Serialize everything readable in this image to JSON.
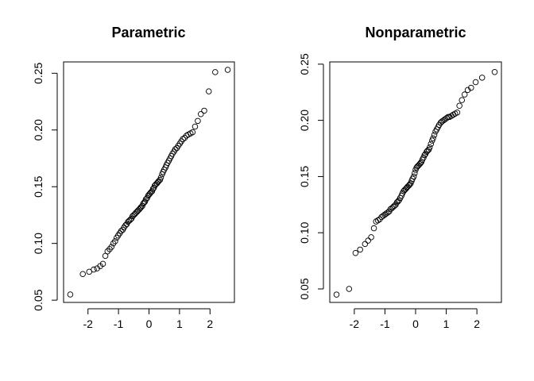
{
  "chart_data": [
    {
      "type": "scatter",
      "title": "Parametric",
      "xlabel": "",
      "ylabel": "",
      "xlim": [
        -2.8,
        2.8
      ],
      "ylim": [
        0.048,
        0.26
      ],
      "xticks": [
        -2,
        -1,
        0,
        1,
        2
      ],
      "xtick_labels": [
        "-2",
        "-1",
        "0",
        "1",
        "2"
      ],
      "yticks": [
        0.05,
        0.1,
        0.15,
        0.2,
        0.25
      ],
      "ytick_labels": [
        "0.05",
        "0.10",
        "0.15",
        "0.20",
        "0.25"
      ],
      "grid": false,
      "legend": "none",
      "marker": "open-circle",
      "points": [
        {
          "x": -2.58,
          "y": 0.055
        },
        {
          "x": -2.17,
          "y": 0.073
        },
        {
          "x": -1.96,
          "y": 0.075
        },
        {
          "x": -1.81,
          "y": 0.077
        },
        {
          "x": -1.7,
          "y": 0.078
        },
        {
          "x": -1.6,
          "y": 0.08
        },
        {
          "x": -1.51,
          "y": 0.082
        },
        {
          "x": -1.43,
          "y": 0.089
        },
        {
          "x": -1.36,
          "y": 0.093
        },
        {
          "x": -1.29,
          "y": 0.095
        },
        {
          "x": -1.23,
          "y": 0.097
        },
        {
          "x": -1.17,
          "y": 0.1
        },
        {
          "x": -1.11,
          "y": 0.102
        },
        {
          "x": -1.06,
          "y": 0.105
        },
        {
          "x": -1.01,
          "y": 0.107
        },
        {
          "x": -0.96,
          "y": 0.109
        },
        {
          "x": -0.91,
          "y": 0.111
        },
        {
          "x": -0.86,
          "y": 0.112
        },
        {
          "x": -0.82,
          "y": 0.114
        },
        {
          "x": -0.77,
          "y": 0.116
        },
        {
          "x": -0.73,
          "y": 0.117
        },
        {
          "x": -0.69,
          "y": 0.119
        },
        {
          "x": -0.65,
          "y": 0.12
        },
        {
          "x": -0.61,
          "y": 0.121
        },
        {
          "x": -0.57,
          "y": 0.122
        },
        {
          "x": -0.54,
          "y": 0.124
        },
        {
          "x": -0.5,
          "y": 0.125
        },
        {
          "x": -0.46,
          "y": 0.126
        },
        {
          "x": -0.43,
          "y": 0.127
        },
        {
          "x": -0.39,
          "y": 0.128
        },
        {
          "x": -0.36,
          "y": 0.129
        },
        {
          "x": -0.32,
          "y": 0.13
        },
        {
          "x": -0.29,
          "y": 0.131
        },
        {
          "x": -0.26,
          "y": 0.132
        },
        {
          "x": -0.22,
          "y": 0.133
        },
        {
          "x": -0.19,
          "y": 0.135
        },
        {
          "x": -0.16,
          "y": 0.136
        },
        {
          "x": -0.13,
          "y": 0.137
        },
        {
          "x": -0.1,
          "y": 0.139
        },
        {
          "x": -0.06,
          "y": 0.14
        },
        {
          "x": -0.03,
          "y": 0.142
        },
        {
          "x": 0.0,
          "y": 0.143
        },
        {
          "x": 0.03,
          "y": 0.144
        },
        {
          "x": 0.06,
          "y": 0.145
        },
        {
          "x": 0.1,
          "y": 0.146
        },
        {
          "x": 0.13,
          "y": 0.148
        },
        {
          "x": 0.16,
          "y": 0.149
        },
        {
          "x": 0.19,
          "y": 0.151
        },
        {
          "x": 0.22,
          "y": 0.152
        },
        {
          "x": 0.26,
          "y": 0.153
        },
        {
          "x": 0.29,
          "y": 0.154
        },
        {
          "x": 0.32,
          "y": 0.155
        },
        {
          "x": 0.36,
          "y": 0.156
        },
        {
          "x": 0.39,
          "y": 0.158
        },
        {
          "x": 0.43,
          "y": 0.161
        },
        {
          "x": 0.46,
          "y": 0.163
        },
        {
          "x": 0.5,
          "y": 0.165
        },
        {
          "x": 0.54,
          "y": 0.167
        },
        {
          "x": 0.57,
          "y": 0.169
        },
        {
          "x": 0.61,
          "y": 0.171
        },
        {
          "x": 0.65,
          "y": 0.173
        },
        {
          "x": 0.69,
          "y": 0.175
        },
        {
          "x": 0.73,
          "y": 0.177
        },
        {
          "x": 0.77,
          "y": 0.179
        },
        {
          "x": 0.82,
          "y": 0.181
        },
        {
          "x": 0.86,
          "y": 0.183
        },
        {
          "x": 0.91,
          "y": 0.184
        },
        {
          "x": 0.96,
          "y": 0.186
        },
        {
          "x": 1.01,
          "y": 0.188
        },
        {
          "x": 1.06,
          "y": 0.19
        },
        {
          "x": 1.11,
          "y": 0.192
        },
        {
          "x": 1.17,
          "y": 0.193
        },
        {
          "x": 1.23,
          "y": 0.195
        },
        {
          "x": 1.29,
          "y": 0.196
        },
        {
          "x": 1.36,
          "y": 0.197
        },
        {
          "x": 1.43,
          "y": 0.198
        },
        {
          "x": 1.51,
          "y": 0.203
        },
        {
          "x": 1.6,
          "y": 0.208
        },
        {
          "x": 1.7,
          "y": 0.214
        },
        {
          "x": 1.81,
          "y": 0.217
        },
        {
          "x": 1.96,
          "y": 0.234
        },
        {
          "x": 2.17,
          "y": 0.251
        },
        {
          "x": 2.58,
          "y": 0.253
        }
      ]
    },
    {
      "type": "scatter",
      "title": "Nonparametric",
      "xlabel": "",
      "ylabel": "",
      "xlim": [
        -2.8,
        2.8
      ],
      "ylim": [
        0.038,
        0.252
      ],
      "xticks": [
        -2,
        -1,
        0,
        1,
        2
      ],
      "xtick_labels": [
        "-2",
        "-1",
        "0",
        "1",
        "2"
      ],
      "yticks": [
        0.05,
        0.1,
        0.15,
        0.2,
        0.25
      ],
      "ytick_labels": [
        "0.05",
        "0.10",
        "0.15",
        "0.20",
        "0.25"
      ],
      "grid": false,
      "legend": "none",
      "marker": "open-circle",
      "points": [
        {
          "x": -2.58,
          "y": 0.045
        },
        {
          "x": -2.17,
          "y": 0.05
        },
        {
          "x": -1.96,
          "y": 0.082
        },
        {
          "x": -1.81,
          "y": 0.085
        },
        {
          "x": -1.65,
          "y": 0.09
        },
        {
          "x": -1.55,
          "y": 0.093
        },
        {
          "x": -1.45,
          "y": 0.096
        },
        {
          "x": -1.36,
          "y": 0.104
        },
        {
          "x": -1.29,
          "y": 0.11
        },
        {
          "x": -1.23,
          "y": 0.111
        },
        {
          "x": -1.17,
          "y": 0.112
        },
        {
          "x": -1.11,
          "y": 0.114
        },
        {
          "x": -1.06,
          "y": 0.115
        },
        {
          "x": -1.01,
          "y": 0.116
        },
        {
          "x": -0.96,
          "y": 0.117
        },
        {
          "x": -0.91,
          "y": 0.118
        },
        {
          "x": -0.86,
          "y": 0.119
        },
        {
          "x": -0.82,
          "y": 0.121
        },
        {
          "x": -0.77,
          "y": 0.122
        },
        {
          "x": -0.73,
          "y": 0.123
        },
        {
          "x": -0.69,
          "y": 0.124
        },
        {
          "x": -0.65,
          "y": 0.125
        },
        {
          "x": -0.61,
          "y": 0.127
        },
        {
          "x": -0.57,
          "y": 0.128
        },
        {
          "x": -0.54,
          "y": 0.129
        },
        {
          "x": -0.5,
          "y": 0.131
        },
        {
          "x": -0.46,
          "y": 0.133
        },
        {
          "x": -0.43,
          "y": 0.135
        },
        {
          "x": -0.39,
          "y": 0.137
        },
        {
          "x": -0.36,
          "y": 0.138
        },
        {
          "x": -0.32,
          "y": 0.139
        },
        {
          "x": -0.29,
          "y": 0.14
        },
        {
          "x": -0.26,
          "y": 0.141
        },
        {
          "x": -0.22,
          "y": 0.142
        },
        {
          "x": -0.19,
          "y": 0.143
        },
        {
          "x": -0.16,
          "y": 0.144
        },
        {
          "x": -0.13,
          "y": 0.146
        },
        {
          "x": -0.1,
          "y": 0.148
        },
        {
          "x": -0.06,
          "y": 0.15
        },
        {
          "x": -0.03,
          "y": 0.153
        },
        {
          "x": 0.0,
          "y": 0.156
        },
        {
          "x": 0.03,
          "y": 0.158
        },
        {
          "x": 0.06,
          "y": 0.159
        },
        {
          "x": 0.1,
          "y": 0.16
        },
        {
          "x": 0.13,
          "y": 0.161
        },
        {
          "x": 0.16,
          "y": 0.162
        },
        {
          "x": 0.19,
          "y": 0.163
        },
        {
          "x": 0.22,
          "y": 0.165
        },
        {
          "x": 0.26,
          "y": 0.167
        },
        {
          "x": 0.29,
          "y": 0.169
        },
        {
          "x": 0.32,
          "y": 0.17
        },
        {
          "x": 0.36,
          "y": 0.172
        },
        {
          "x": 0.39,
          "y": 0.173
        },
        {
          "x": 0.43,
          "y": 0.174
        },
        {
          "x": 0.46,
          "y": 0.176
        },
        {
          "x": 0.5,
          "y": 0.179
        },
        {
          "x": 0.54,
          "y": 0.182
        },
        {
          "x": 0.57,
          "y": 0.184
        },
        {
          "x": 0.61,
          "y": 0.187
        },
        {
          "x": 0.65,
          "y": 0.19
        },
        {
          "x": 0.69,
          "y": 0.192
        },
        {
          "x": 0.73,
          "y": 0.194
        },
        {
          "x": 0.77,
          "y": 0.196
        },
        {
          "x": 0.82,
          "y": 0.198
        },
        {
          "x": 0.86,
          "y": 0.199
        },
        {
          "x": 0.91,
          "y": 0.2
        },
        {
          "x": 0.96,
          "y": 0.201
        },
        {
          "x": 1.01,
          "y": 0.202
        },
        {
          "x": 1.06,
          "y": 0.203
        },
        {
          "x": 1.11,
          "y": 0.203
        },
        {
          "x": 1.17,
          "y": 0.204
        },
        {
          "x": 1.23,
          "y": 0.205
        },
        {
          "x": 1.29,
          "y": 0.206
        },
        {
          "x": 1.36,
          "y": 0.207
        },
        {
          "x": 1.43,
          "y": 0.213
        },
        {
          "x": 1.51,
          "y": 0.218
        },
        {
          "x": 1.6,
          "y": 0.223
        },
        {
          "x": 1.7,
          "y": 0.227
        },
        {
          "x": 1.81,
          "y": 0.229
        },
        {
          "x": 1.96,
          "y": 0.234
        },
        {
          "x": 2.17,
          "y": 0.238
        },
        {
          "x": 2.58,
          "y": 0.243
        }
      ]
    }
  ]
}
